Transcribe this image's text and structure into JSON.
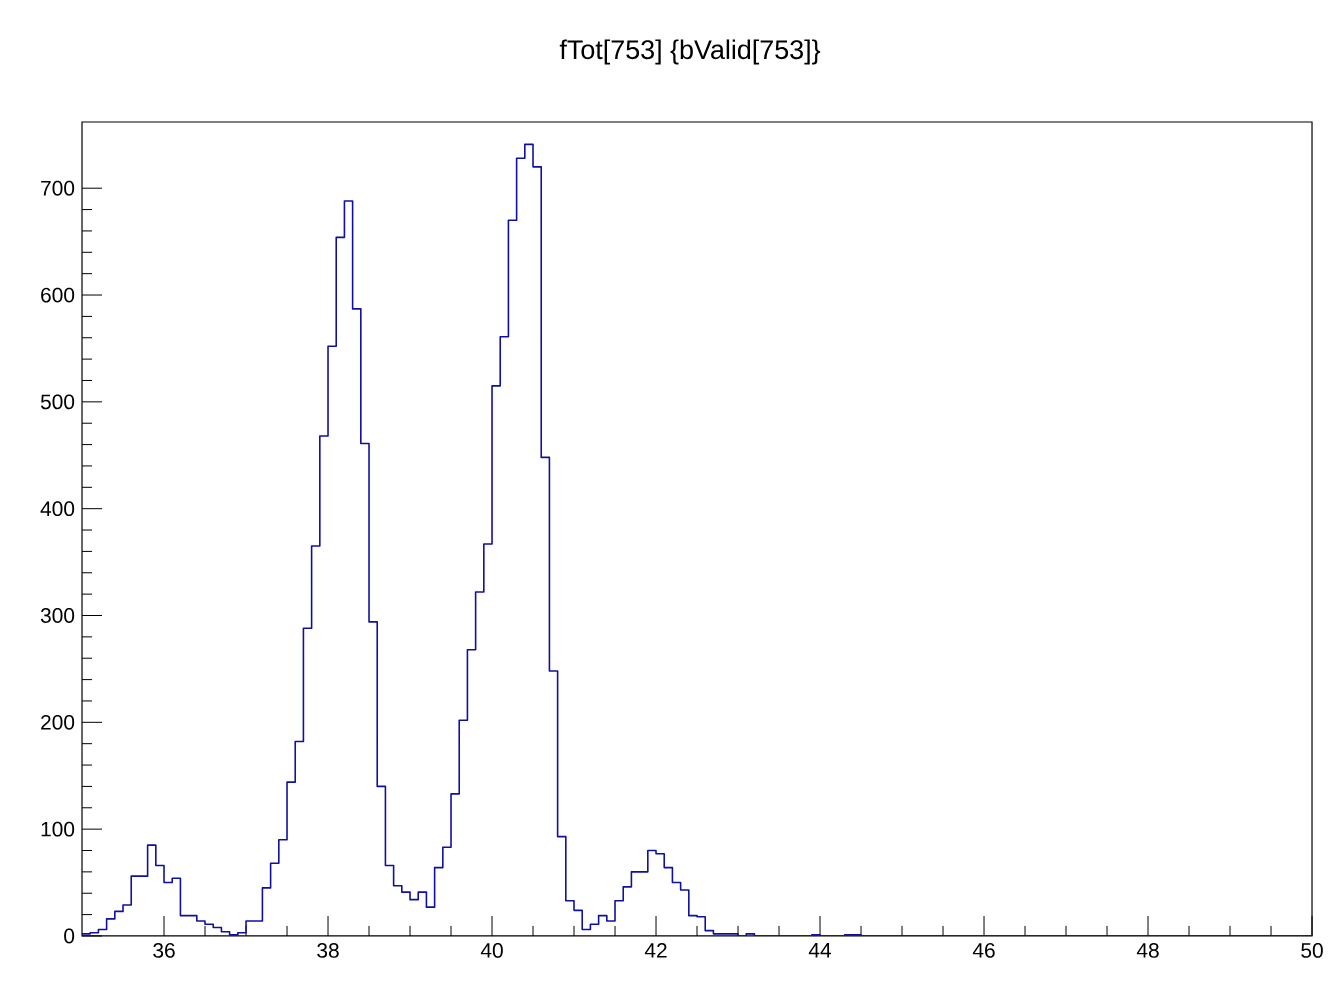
{
  "chart_data": {
    "type": "histogram",
    "title": "fTot[753] {bValid[753]}",
    "bins": [
      35,
      35.1,
      35.2,
      35.3,
      35.4,
      35.5,
      35.6,
      35.7,
      35.8,
      35.9,
      36,
      36.1,
      36.2,
      36.3,
      36.4,
      36.5,
      36.6,
      36.7,
      36.8,
      36.9,
      37,
      37.1,
      37.2,
      37.3,
      37.4,
      37.5,
      37.6,
      37.7,
      37.8,
      37.9,
      38,
      38.1,
      38.2,
      38.3,
      38.4,
      38.5,
      38.6,
      38.7,
      38.8,
      38.9,
      39,
      39.1,
      39.2,
      39.3,
      39.4,
      39.5,
      39.6,
      39.7,
      39.8,
      39.9,
      40,
      40.1,
      40.2,
      40.3,
      40.4,
      40.5,
      40.6,
      40.7,
      40.8,
      40.9,
      41,
      41.1,
      41.2,
      41.3,
      41.4,
      41.5,
      41.6,
      41.7,
      41.8,
      41.9,
      42,
      42.1,
      42.2,
      42.3,
      42.4,
      42.5,
      42.6,
      42.7,
      42.8,
      42.9,
      43,
      43.1,
      43.2,
      43.3,
      43.4,
      43.5,
      43.6,
      43.7,
      43.8,
      43.9,
      44,
      44.1,
      44.2,
      44.3,
      44.4,
      44.5,
      44.6,
      44.7,
      44.8,
      44.9,
      45,
      45.1,
      45.2,
      45.3,
      45.4,
      45.5,
      45.6,
      45.7,
      45.8,
      45.9,
      46,
      46.1,
      46.2,
      46.3,
      46.4,
      46.5,
      46.6,
      46.7,
      46.8,
      46.9,
      47,
      47.1,
      47.2,
      47.3,
      47.4,
      47.5,
      47.6,
      47.7,
      47.8,
      47.9,
      48,
      48.1,
      48.2,
      48.3,
      48.4,
      48.5,
      48.6,
      48.7,
      48.8,
      48.9,
      49,
      49.1,
      49.2,
      49.3,
      49.4,
      49.5,
      49.6,
      49.7,
      49.8,
      49.9,
      50
    ],
    "values": [
      2,
      3,
      6,
      16,
      23,
      29,
      56,
      56,
      85,
      66,
      50,
      54,
      19,
      19,
      14,
      11,
      8,
      4,
      1,
      3,
      14,
      14,
      45,
      68,
      90,
      144,
      182,
      288,
      365,
      468,
      552,
      654,
      688,
      587,
      461,
      294,
      140,
      66,
      47,
      41,
      34,
      41,
      27,
      64,
      83,
      133,
      202,
      268,
      322,
      367,
      515,
      561,
      670,
      728,
      741,
      720,
      448,
      248,
      93,
      33,
      24,
      6,
      11,
      19,
      14,
      33,
      46,
      60,
      60,
      80,
      77,
      64,
      50,
      43,
      19,
      18,
      5,
      2,
      2,
      2,
      0,
      2,
      0,
      0,
      0,
      0,
      0,
      0,
      0,
      1,
      0,
      0,
      0,
      1,
      1,
      0,
      0,
      0,
      0,
      0,
      0,
      0,
      0,
      0,
      0,
      0,
      0,
      0,
      0,
      0,
      0,
      0,
      0,
      0,
      0,
      0,
      0,
      0,
      0,
      0,
      0,
      0,
      0,
      0,
      0,
      0,
      0,
      0,
      0,
      0,
      0,
      0,
      0,
      0,
      0,
      0,
      0,
      0,
      0,
      0,
      0,
      0,
      0,
      0,
      0,
      0,
      0,
      0,
      0,
      0
    ],
    "color": "#1010a0",
    "xlim": [
      35,
      50
    ],
    "ylim": [
      0,
      762
    ],
    "xticks": [
      36,
      38,
      40,
      42,
      44,
      46,
      48,
      50
    ],
    "yticks": [
      0,
      100,
      200,
      300,
      400,
      500,
      600,
      700
    ]
  }
}
